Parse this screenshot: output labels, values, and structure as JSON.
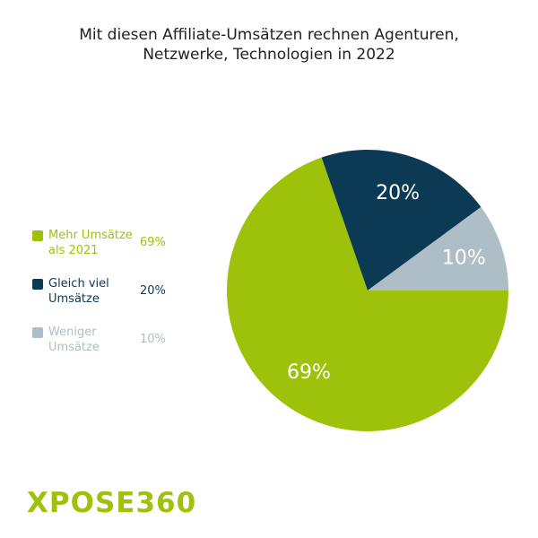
{
  "chart_data": {
    "type": "pie",
    "title": "Mit diesen Affiliate-Umsätzen rechnen Agenturen, Netzwerke, Technologien in 2022",
    "categories": [
      "Mehr Umsätze als 2021",
      "Gleich viel Umsätze",
      "Weniger Umsätze"
    ],
    "values": [
      69,
      20,
      10
    ],
    "value_labels": [
      "69%",
      "20%",
      "10%"
    ],
    "colors": [
      "#9dc209",
      "#0c3a55",
      "#aebec7"
    ],
    "legend": "left"
  },
  "brand": "XPOSE360"
}
